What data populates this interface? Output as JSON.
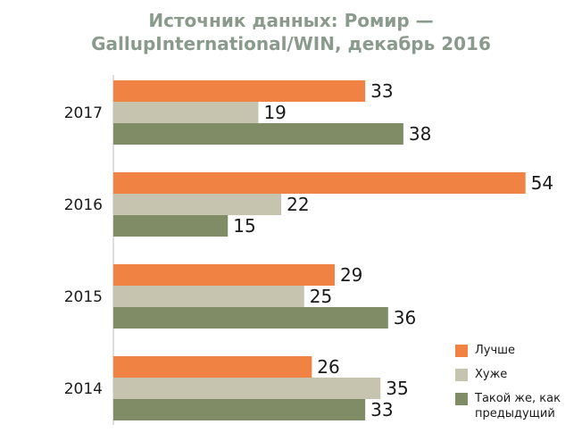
{
  "chart_data": {
    "type": "bar",
    "orientation": "horizontal",
    "title": "Источник данных: Ромир —",
    "subtitle": "GallupInternational/WIN, декабрь 2016",
    "categories": [
      "2017",
      "2016",
      "2015",
      "2014"
    ],
    "series": [
      {
        "name": "Лучше",
        "color": "#f08244",
        "values": [
          33,
          54,
          29,
          26
        ]
      },
      {
        "name": "Хуже",
        "color": "#c6c4ae",
        "values": [
          19,
          22,
          25,
          35
        ]
      },
      {
        "name": "Такой же, как предыдущий",
        "color": "#808c66",
        "values": [
          38,
          15,
          36,
          33
        ]
      }
    ],
    "xlim": [
      0,
      55
    ],
    "legend_position": "bottom-right",
    "grid": false
  }
}
